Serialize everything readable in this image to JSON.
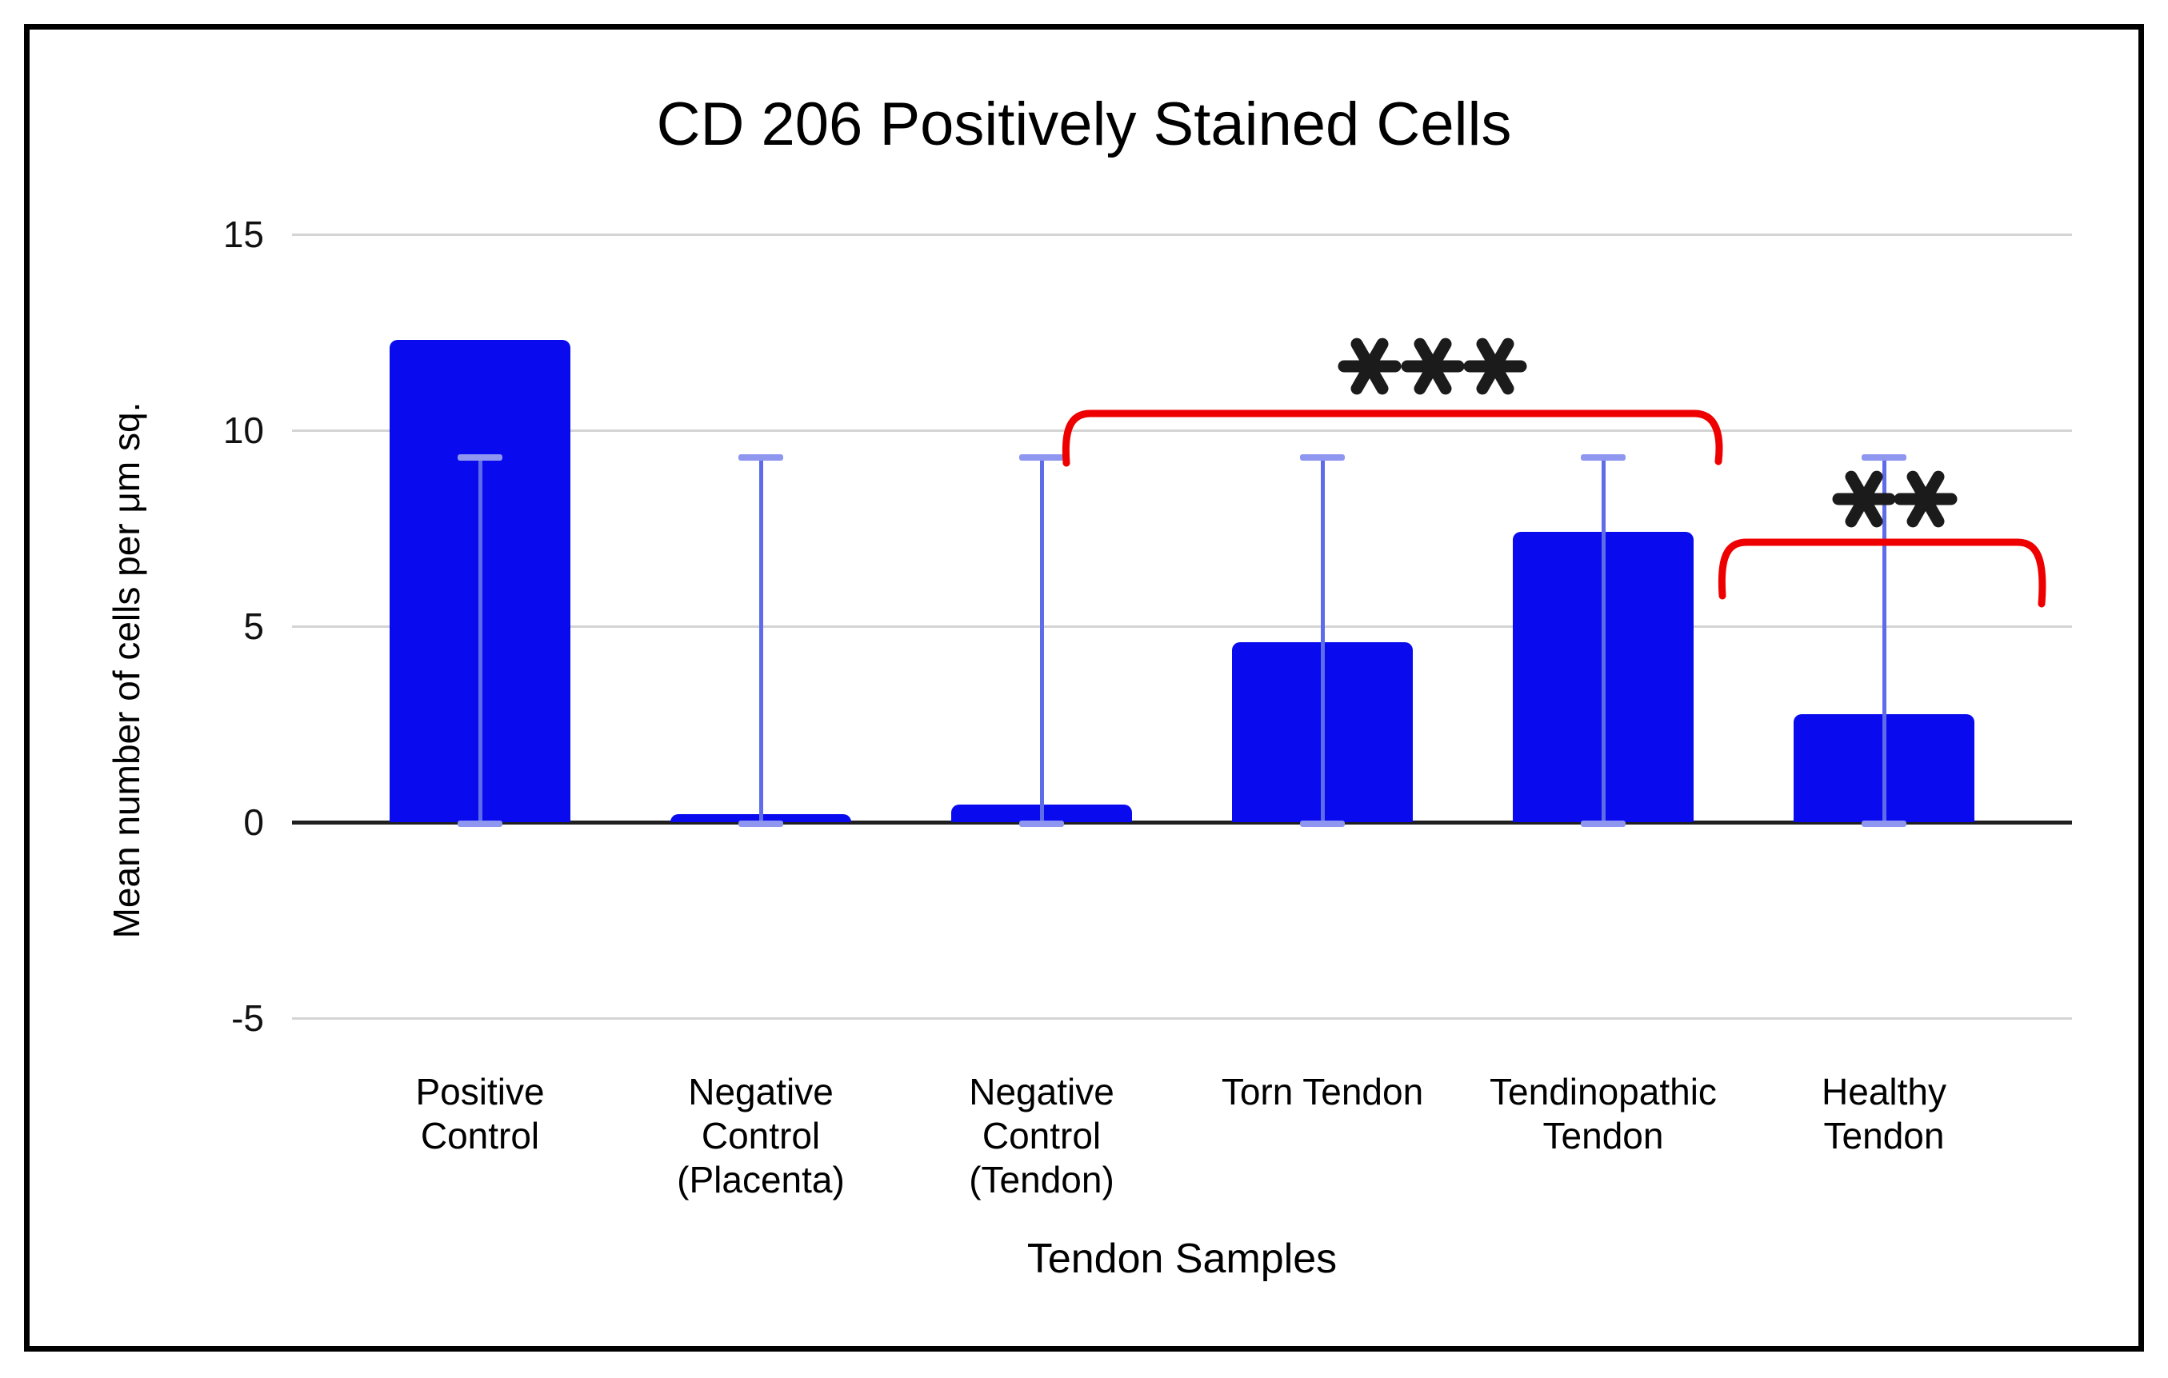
{
  "figure": {
    "title": "CD 206 Positively Stained Cells",
    "x_axis_label": "Tendon Samples",
    "y_axis_label": "Mean number of cells per μm sq."
  },
  "chart_data": {
    "type": "bar",
    "title": "CD 206 Positively Stained Cells",
    "xlabel": "Tendon Samples",
    "ylabel": "Mean number of cells per μm sq.",
    "ylim": [
      -5,
      15
    ],
    "yticks": [
      15,
      10,
      5,
      0,
      -5
    ],
    "grid": true,
    "legend": "none",
    "bar_color": "#0a0aee",
    "error_bar_line_color": "#5e6ce8",
    "error_bar_cap_color": "#8e96f0",
    "annotation_color": "#ee0000",
    "asterisk_color": "#1b1b1b",
    "categories": [
      "Positive Control",
      "Negative Control (Placenta)",
      "Negative Control (Tendon)",
      "Torn Tendon",
      "Tendinopathic Tendon",
      "Healthy Tendon"
    ],
    "category_display_lines": [
      "Positive\nControl",
      "Negative\nControl\n(Placenta)",
      "Negative\nControl\n(Tendon)",
      "Torn Tendon",
      "Tendinopathic\nTendon",
      "Healthy\nTendon"
    ],
    "values": [
      12.3,
      0.2,
      0.45,
      4.6,
      7.4,
      2.75
    ],
    "error_bars": {
      "top_value": 9.3,
      "bottom_value": 0,
      "applies_to": "all bars"
    },
    "annotations": [
      {
        "type": "significance-bracket",
        "label": "***",
        "from": "Negative Control (Tendon)",
        "to": "Tendinopathic Tendon",
        "color": "#ee0000"
      },
      {
        "type": "significance-bracket",
        "label": "**",
        "from": "Tendinopathic Tendon",
        "to": "Healthy Tendon",
        "color": "#ee0000"
      }
    ]
  }
}
